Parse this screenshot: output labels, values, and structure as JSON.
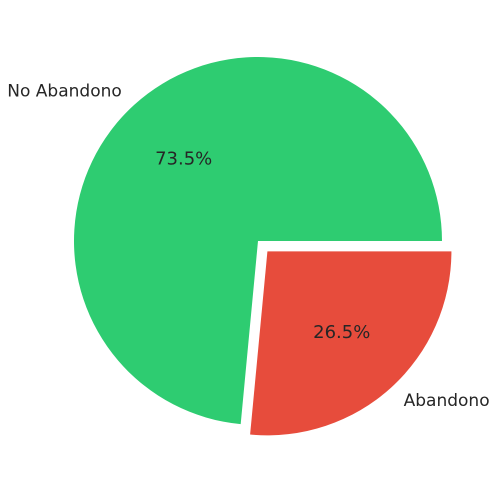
{
  "chart_data": {
    "type": "pie",
    "slices": [
      {
        "label": "No Abandono",
        "value": 73.5,
        "display": "73.5%",
        "color": "#2ecc71",
        "explode": false
      },
      {
        "label": "Abandono",
        "value": 26.5,
        "display": "26.5%",
        "color": "#e74c3c",
        "explode": true
      }
    ],
    "title": ""
  }
}
